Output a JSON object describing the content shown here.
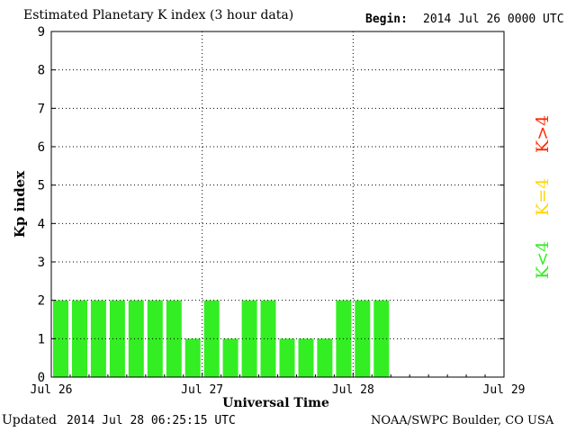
{
  "header": {
    "title": "Estimated Planetary K index (3 hour data)",
    "begin_label": "Begin:",
    "begin_value": "2014 Jul 26 0000 UTC"
  },
  "footer": {
    "updated_label": "Updated",
    "updated_value": "2014 Jul 28 06:25:15 UTC",
    "credit": "NOAA/SWPC Boulder, CO USA"
  },
  "legend": [
    {
      "label": "K>4",
      "color": "#ff2a00"
    },
    {
      "label": "K=4",
      "color": "#ffd700"
    },
    {
      "label": "K<4",
      "color": "#33ee22"
    }
  ],
  "chart_data": {
    "type": "bar",
    "title": "Estimated Planetary K index (3 hour data)",
    "xlabel": "Universal Time",
    "ylabel": "Kp index",
    "ylim": [
      0,
      9
    ],
    "yticks": [
      0,
      1,
      2,
      3,
      4,
      5,
      6,
      7,
      8,
      9
    ],
    "xticks": [
      "Jul 26",
      "Jul 27",
      "Jul 28",
      "Jul 29"
    ],
    "slots_per_day": 8,
    "bar_color": "#33ee22",
    "grid": true,
    "values": [
      2,
      2,
      2,
      2,
      2,
      2,
      2,
      1,
      2,
      1,
      2,
      2,
      1,
      1,
      1,
      2,
      2,
      2
    ]
  }
}
